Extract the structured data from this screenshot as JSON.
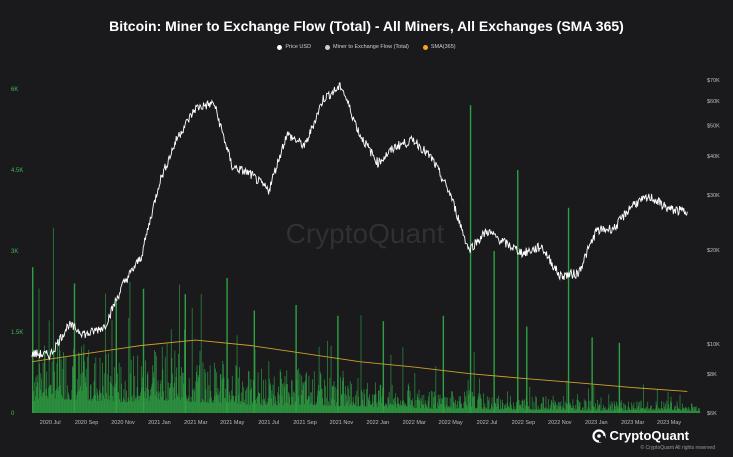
{
  "title": "Bitcoin: Miner to Exchange Flow (Total) - All Miners, All Exchanges (SMA 365)",
  "legend": [
    {
      "label": "Price USD",
      "color": "#ffffff"
    },
    {
      "label": "Miner to Exchange Flow (Total)",
      "color": "#cfcfcf"
    },
    {
      "label": "SMA(365)",
      "color": "#f5a623"
    }
  ],
  "watermark": "CryptoQuant",
  "brand": {
    "name": "CryptoQuant",
    "copyright": "© CryptoQuant All rights reserved"
  },
  "colors": {
    "background": "#1a1a1d",
    "flow": "#2ea043",
    "price": "#ffffff",
    "sma": "#c9a227",
    "left_axis": "#3fb950"
  },
  "chart_data": {
    "type": "bar",
    "title": "Bitcoin: Miner to Exchange Flow (Total) - All Miners, All Exchanges (SMA 365)",
    "x_tick_labels": [
      "2020 Jul",
      "2020 Sep",
      "2020 Nov",
      "2021 Jan",
      "2021 Mar",
      "2021 May",
      "2021 Jul",
      "2021 Sep",
      "2021 Nov",
      "2022 Jan",
      "2022 Mar",
      "2022 May",
      "2022 Jul",
      "2022 Sep",
      "2022 Nov",
      "2023 Jan",
      "2023 Mar",
      "2023 May"
    ],
    "left_axis": {
      "ticks": [
        "0",
        "1.5K",
        "3K",
        "4.5K",
        "6K"
      ],
      "range": [
        0,
        6500
      ]
    },
    "right_axis": {
      "scale": "log",
      "ticks": [
        "$6K",
        "$8K",
        "$10K",
        "$20K",
        "$30K",
        "$40K",
        "$50K",
        "$60K",
        "$70K"
      ],
      "range": [
        6000,
        80000
      ]
    },
    "series": [
      {
        "name": "Price USD",
        "type": "line",
        "axis": "right",
        "points": [
          [
            "2020 Jun",
            9300
          ],
          [
            "2020 Jul",
            9200
          ],
          [
            "2020 Aug",
            11500
          ],
          [
            "2020 Sep",
            10700
          ],
          [
            "2020 Oct",
            11400
          ],
          [
            "2020 Nov",
            15500
          ],
          [
            "2020 Dec",
            19000
          ],
          [
            "2021 Jan",
            33000
          ],
          [
            "2021 Feb",
            46000
          ],
          [
            "2021 Mar",
            57000
          ],
          [
            "2021 Apr",
            59000
          ],
          [
            "2021 May",
            37000
          ],
          [
            "2021 Jun",
            35000
          ],
          [
            "2021 Jul",
            31000
          ],
          [
            "2021 Aug",
            47000
          ],
          [
            "2021 Sep",
            43000
          ],
          [
            "2021 Oct",
            61000
          ],
          [
            "2021 Nov",
            67000
          ],
          [
            "2021 Dec",
            47000
          ],
          [
            "2022 Jan",
            38000
          ],
          [
            "2022 Feb",
            43000
          ],
          [
            "2022 Mar",
            45000
          ],
          [
            "2022 Apr",
            39000
          ],
          [
            "2022 May",
            30000
          ],
          [
            "2022 Jun",
            20000
          ],
          [
            "2022 Jul",
            23000
          ],
          [
            "2022 Aug",
            21000
          ],
          [
            "2022 Sep",
            19500
          ],
          [
            "2022 Oct",
            20500
          ],
          [
            "2022 Nov",
            16500
          ],
          [
            "2022 Dec",
            16800
          ],
          [
            "2023 Jan",
            23000
          ],
          [
            "2023 Feb",
            23500
          ],
          [
            "2023 Mar",
            28000
          ],
          [
            "2023 Apr",
            29500
          ],
          [
            "2023 May",
            27000
          ],
          [
            "2023 Jun",
            26500
          ]
        ]
      },
      {
        "name": "Miner to Exchange Flow (Total)",
        "type": "bar",
        "axis": "left",
        "monthly_typical": [
          [
            "2020 Jun",
            700
          ],
          [
            "2020 Jul",
            900
          ],
          [
            "2020 Aug",
            800
          ],
          [
            "2020 Sep",
            750
          ],
          [
            "2020 Oct",
            700
          ],
          [
            "2020 Nov",
            650
          ],
          [
            "2020 Dec",
            700
          ],
          [
            "2021 Jan",
            800
          ],
          [
            "2021 Feb",
            700
          ],
          [
            "2021 Mar",
            650
          ],
          [
            "2021 Apr",
            600
          ],
          [
            "2021 May",
            600
          ],
          [
            "2021 Jun",
            450
          ],
          [
            "2021 Jul",
            450
          ],
          [
            "2021 Aug",
            500
          ],
          [
            "2021 Sep",
            500
          ],
          [
            "2021 Oct",
            450
          ],
          [
            "2021 Nov",
            400
          ],
          [
            "2021 Dec",
            400
          ],
          [
            "2022 Jan",
            350
          ],
          [
            "2022 Feb",
            300
          ],
          [
            "2022 Mar",
            300
          ],
          [
            "2022 Apr",
            250
          ],
          [
            "2022 May",
            250
          ],
          [
            "2022 Jun",
            300
          ],
          [
            "2022 Jul",
            200
          ],
          [
            "2022 Aug",
            200
          ],
          [
            "2022 Sep",
            200
          ],
          [
            "2022 Oct",
            180
          ],
          [
            "2022 Nov",
            200
          ],
          [
            "2022 Dec",
            150
          ],
          [
            "2023 Jan",
            150
          ],
          [
            "2023 Feb",
            130
          ],
          [
            "2023 Mar",
            150
          ],
          [
            "2023 Apr",
            130
          ],
          [
            "2023 May",
            150
          ],
          [
            "2023 Jun",
            120
          ]
        ],
        "spikes": [
          [
            "2020 Jun",
            2700
          ],
          [
            "2020 Aug",
            2400
          ],
          [
            "2020 Oct",
            2100
          ],
          [
            "2020 Dec",
            2300
          ],
          [
            "2021 Feb",
            2200
          ],
          [
            "2021 Apr",
            2500
          ],
          [
            "2021 Jun",
            1900
          ],
          [
            "2021 Aug",
            2000
          ],
          [
            "2021 Oct",
            1800
          ],
          [
            "2022 Jan",
            1700
          ],
          [
            "2022 Apr",
            1800
          ],
          [
            "2022 Jun",
            5700
          ],
          [
            "2022 Jul",
            3000
          ],
          [
            "2022 Aug",
            4500
          ],
          [
            "2022 Sep",
            1600
          ],
          [
            "2022 Nov",
            3800
          ],
          [
            "2022 Dec",
            1400
          ],
          [
            "2023 Feb",
            1300
          ]
        ]
      },
      {
        "name": "SMA(365)",
        "type": "line",
        "axis": "left",
        "points": [
          [
            "2020 Jun",
            950
          ],
          [
            "2020 Sep",
            1100
          ],
          [
            "2020 Dec",
            1250
          ],
          [
            "2021 Mar",
            1350
          ],
          [
            "2021 Jun",
            1250
          ],
          [
            "2021 Sep",
            1100
          ],
          [
            "2021 Dec",
            950
          ],
          [
            "2022 Mar",
            850
          ],
          [
            "2022 Jun",
            730
          ],
          [
            "2022 Sep",
            640
          ],
          [
            "2022 Dec",
            560
          ],
          [
            "2023 Mar",
            470
          ],
          [
            "2023 Jun",
            400
          ]
        ]
      }
    ],
    "grid": false,
    "legend_position": "top-center"
  }
}
